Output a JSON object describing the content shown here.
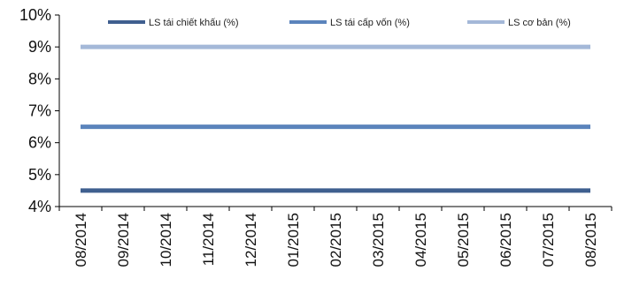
{
  "chart_data": {
    "type": "line",
    "title": "",
    "xlabel": "",
    "ylabel": "",
    "categories": [
      "08/2014",
      "09/2014",
      "10/2014",
      "11/2014",
      "12/2014",
      "01/2015",
      "02/2015",
      "03/2015",
      "04/2015",
      "05/2015",
      "06/2015",
      "07/2015",
      "08/2015"
    ],
    "ylim": [
      4,
      10
    ],
    "yticks": [
      4,
      5,
      6,
      7,
      8,
      9,
      10
    ],
    "ytick_labels": [
      "4%",
      "5%",
      "6%",
      "7%",
      "8%",
      "9%",
      "10%"
    ],
    "grid": false,
    "legend_position": "top",
    "series": [
      {
        "name": "LS tái chiết khấu (%)",
        "color": "#3F5F8F",
        "values": [
          4.5,
          4.5,
          4.5,
          4.5,
          4.5,
          4.5,
          4.5,
          4.5,
          4.5,
          4.5,
          4.5,
          4.5,
          4.5
        ]
      },
      {
        "name": "LS tái cấp vốn (%)",
        "color": "#5B84BC",
        "values": [
          6.5,
          6.5,
          6.5,
          6.5,
          6.5,
          6.5,
          6.5,
          6.5,
          6.5,
          6.5,
          6.5,
          6.5,
          6.5
        ]
      },
      {
        "name": "LS cơ bản (%)",
        "color": "#A4B8D8",
        "values": [
          9,
          9,
          9,
          9,
          9,
          9,
          9,
          9,
          9,
          9,
          9,
          9,
          9
        ]
      }
    ]
  }
}
